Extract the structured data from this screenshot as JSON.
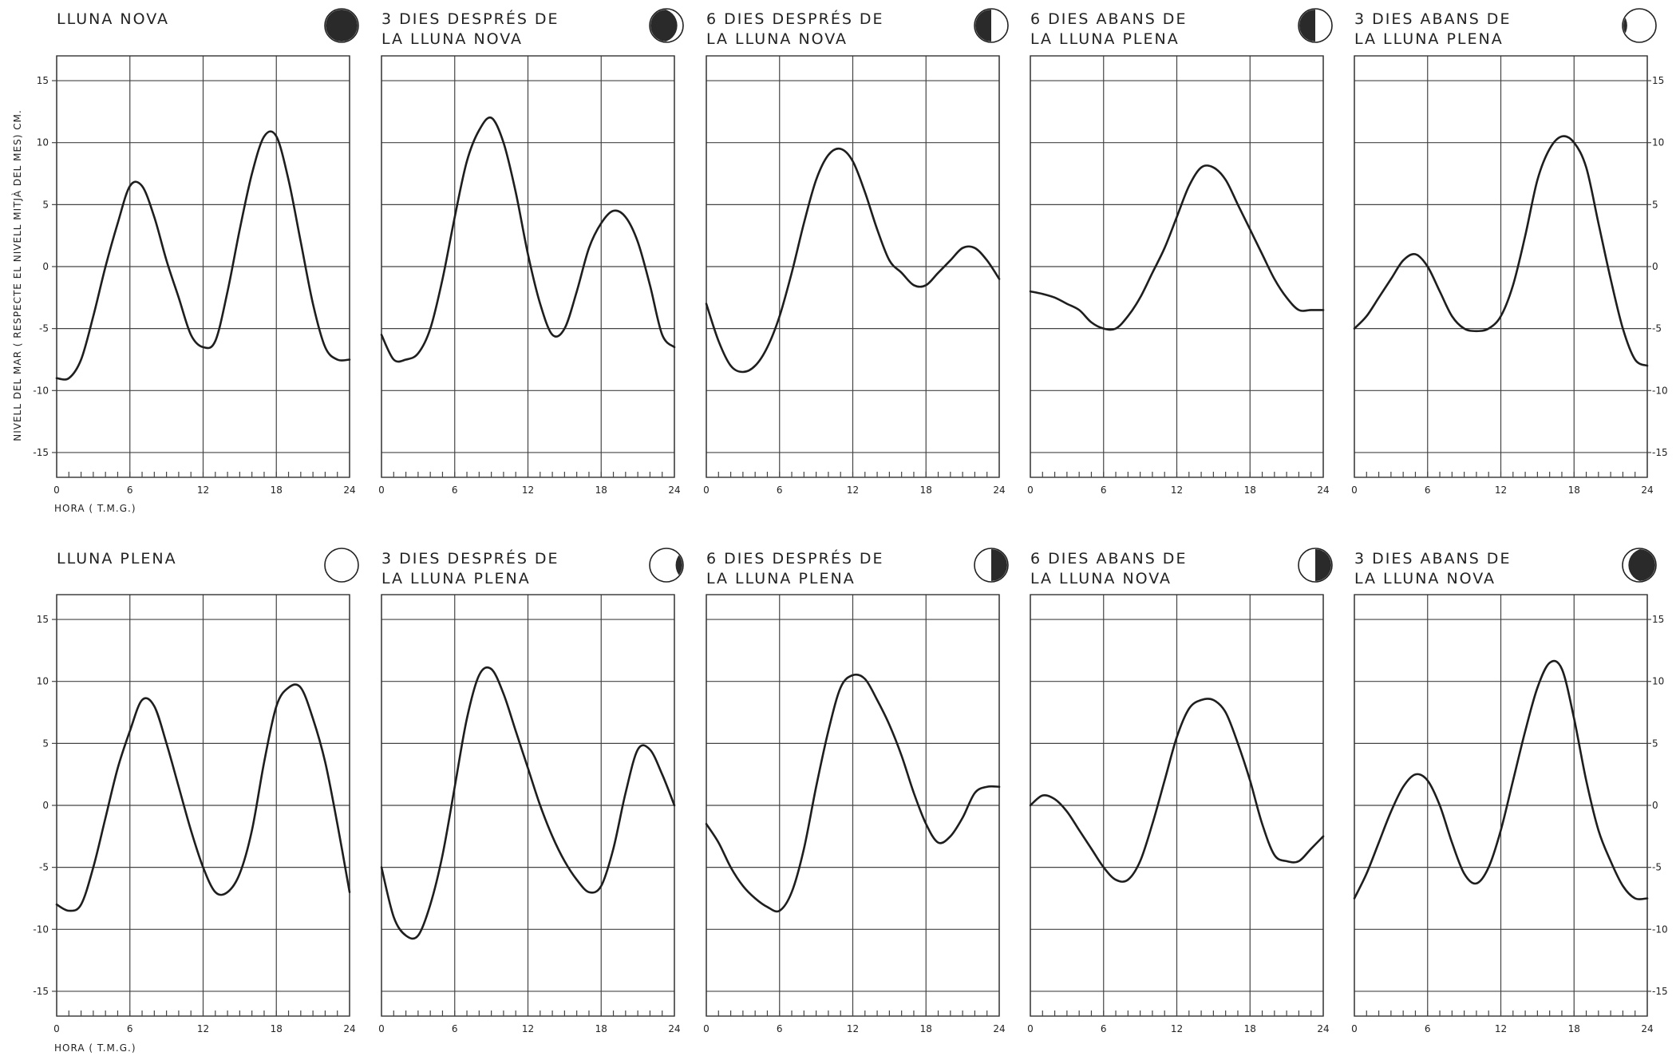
{
  "chart_data": {
    "type": "line",
    "y_axis_label": "NIVELL DEL MAR ( RESPECTE EL NIVELL MITJÀ DEL MES) CM.",
    "x_axis_label": "HORA ( T.M.G.)",
    "ylim": [
      -17,
      17
    ],
    "y_ticks": [
      "15",
      "10",
      "5",
      "0",
      "-5",
      "-10",
      "-15"
    ],
    "xlim": [
      0,
      24
    ],
    "x_ticks": [
      "0",
      "6",
      "12",
      "18",
      "24"
    ],
    "grid": true,
    "panels": [
      {
        "title_lines": [
          "LLUNA NOVA"
        ],
        "moon_icon": "new-moon-icon",
        "x": [
          0,
          1,
          2,
          3,
          4,
          5,
          6,
          7,
          8,
          9,
          10,
          11,
          12,
          13,
          14,
          15,
          16,
          17,
          18,
          19,
          20,
          21,
          22,
          23,
          24
        ],
        "y": [
          -9,
          -9,
          -7.5,
          -4,
          0,
          3.5,
          6.5,
          6.5,
          4,
          0.5,
          -2.5,
          -5.5,
          -6.5,
          -6,
          -2,
          3,
          7.5,
          10.5,
          10.5,
          7,
          2,
          -3,
          -6.5,
          -7.5,
          -7.5
        ]
      },
      {
        "title_lines": [
          "3 DIES DESPRÉS DE",
          "LA LLUNA NOVA"
        ],
        "moon_icon": "waxing-crescent-icon",
        "x": [
          0,
          1,
          2,
          3,
          4,
          5,
          6,
          7,
          8,
          9,
          10,
          11,
          12,
          13,
          14,
          15,
          16,
          17,
          18,
          19,
          20,
          21,
          22,
          23,
          24
        ],
        "y": [
          -5.5,
          -7.5,
          -7.5,
          -7,
          -5,
          -1,
          4,
          8.5,
          11,
          12,
          10,
          6,
          1,
          -3,
          -5.5,
          -5,
          -2,
          1.5,
          3.5,
          4.5,
          4,
          2,
          -1.5,
          -5.5,
          -6.5
        ]
      },
      {
        "title_lines": [
          "6 DIES DESPRÉS DE",
          "LA LLUNA NOVA"
        ],
        "moon_icon": "first-quarter-icon",
        "x": [
          0,
          1,
          2,
          3,
          4,
          5,
          6,
          7,
          8,
          9,
          10,
          11,
          12,
          13,
          14,
          15,
          16,
          17,
          18,
          19,
          20,
          21,
          22,
          23,
          24
        ],
        "y": [
          -3,
          -6,
          -8,
          -8.5,
          -8,
          -6.5,
          -4,
          -0.5,
          3.5,
          7,
          9,
          9.5,
          8.5,
          6,
          3,
          0.5,
          -0.5,
          -1.5,
          -1.5,
          -0.5,
          0.5,
          1.5,
          1.5,
          0.5,
          -1
        ]
      },
      {
        "title_lines": [
          "6 DIES ABANS DE",
          "LA LLUNA PLENA"
        ],
        "moon_icon": "waxing-gibbous-icon",
        "x": [
          0,
          1,
          2,
          3,
          4,
          5,
          6,
          7,
          8,
          9,
          10,
          11,
          12,
          13,
          14,
          15,
          16,
          17,
          18,
          19,
          20,
          21,
          22,
          23,
          24
        ],
        "y": [
          -2,
          -2.2,
          -2.5,
          -3,
          -3.5,
          -4.5,
          -5,
          -5,
          -4,
          -2.5,
          -0.5,
          1.5,
          4,
          6.5,
          8,
          8,
          7,
          5,
          3,
          1,
          -1,
          -2.5,
          -3.5,
          -3.5,
          -3.5
        ]
      },
      {
        "title_lines": [
          "3 DIES ABANS DE",
          "LA LLUNA PLENA"
        ],
        "moon_icon": "nearly-full-moon-icon",
        "x": [
          0,
          1,
          2,
          3,
          4,
          5,
          6,
          7,
          8,
          9,
          10,
          11,
          12,
          13,
          14,
          15,
          16,
          17,
          18,
          19,
          20,
          21,
          22,
          23,
          24
        ],
        "y": [
          -5,
          -4,
          -2.5,
          -1,
          0.5,
          1,
          0,
          -2,
          -4,
          -5,
          -5.2,
          -5,
          -4,
          -1.5,
          2.5,
          7,
          9.5,
          10.5,
          10,
          8,
          3.5,
          -1,
          -5,
          -7.5,
          -8
        ]
      },
      {
        "title_lines": [
          "LLUNA PLENA"
        ],
        "moon_icon": "full-moon-icon",
        "x": [
          0,
          1,
          2,
          3,
          4,
          5,
          6,
          7,
          8,
          9,
          10,
          11,
          12,
          13,
          14,
          15,
          16,
          17,
          18,
          19,
          20,
          21,
          22,
          23,
          24
        ],
        "y": [
          -8,
          -8.5,
          -8,
          -5,
          -1,
          3,
          6,
          8.5,
          8,
          5,
          1.5,
          -2,
          -5,
          -7,
          -7,
          -5.5,
          -2,
          3.5,
          8,
          9.5,
          9.5,
          7,
          3.5,
          -1.5,
          -7
        ]
      },
      {
        "title_lines": [
          "3 DIES DESPRÉS DE",
          "LA LLUNA PLENA"
        ],
        "moon_icon": "waning-gibbous-icon",
        "x": [
          0,
          1,
          2,
          3,
          4,
          5,
          6,
          7,
          8,
          9,
          10,
          11,
          12,
          13,
          14,
          15,
          16,
          17,
          18,
          19,
          20,
          21,
          22,
          23,
          24
        ],
        "y": [
          -5,
          -9,
          -10.5,
          -10.5,
          -8,
          -4,
          1.5,
          7,
          10.5,
          11,
          9,
          6,
          3,
          0,
          -2.5,
          -4.5,
          -6,
          -7,
          -6.5,
          -3.5,
          1,
          4.5,
          4.5,
          2.5,
          0
        ]
      },
      {
        "title_lines": [
          "6 DIES DESPRÉS DE",
          "LA LLUNA PLENA"
        ],
        "moon_icon": "last-quarter-icon",
        "x": [
          0,
          1,
          2,
          3,
          4,
          5,
          6,
          7,
          8,
          9,
          10,
          11,
          12,
          13,
          14,
          15,
          16,
          17,
          18,
          19,
          20,
          21,
          22,
          23,
          24
        ],
        "y": [
          -1.5,
          -3,
          -5,
          -6.5,
          -7.5,
          -8.2,
          -8.5,
          -7,
          -3.5,
          1.5,
          6,
          9.5,
          10.5,
          10.2,
          8.5,
          6.5,
          4,
          1,
          -1.5,
          -3,
          -2.5,
          -1,
          1,
          1.5,
          1.5
        ]
      },
      {
        "title_lines": [
          "6 DIES ABANS DE",
          "LA LLUNA NOVA"
        ],
        "moon_icon": "waning-crescent-icon",
        "x": [
          0,
          1,
          2,
          3,
          4,
          5,
          6,
          7,
          8,
          9,
          10,
          11,
          12,
          13,
          14,
          15,
          16,
          17,
          18,
          19,
          20,
          21,
          22,
          23,
          24
        ],
        "y": [
          0,
          0.8,
          0.5,
          -0.5,
          -2,
          -3.5,
          -5,
          -6,
          -6,
          -4.5,
          -1.5,
          2,
          5.5,
          7.8,
          8.5,
          8.5,
          7.5,
          5,
          2,
          -1.5,
          -4,
          -4.5,
          -4.5,
          -3.5,
          -2.5
        ]
      },
      {
        "title_lines": [
          "3 DIES ABANS DE",
          "LA LLUNA NOVA"
        ],
        "moon_icon": "old-crescent-moon-icon",
        "x": [
          0,
          1,
          2,
          3,
          4,
          5,
          6,
          7,
          8,
          9,
          10,
          11,
          12,
          13,
          14,
          15,
          16,
          17,
          18,
          19,
          20,
          21,
          22,
          23,
          24
        ],
        "y": [
          -7.5,
          -5.5,
          -3,
          -0.5,
          1.5,
          2.5,
          2,
          0,
          -3,
          -5.5,
          -6.3,
          -5,
          -2,
          2,
          6,
          9.5,
          11.5,
          11,
          7,
          2,
          -2,
          -4.5,
          -6.5,
          -7.5,
          -7.5
        ]
      }
    ]
  }
}
